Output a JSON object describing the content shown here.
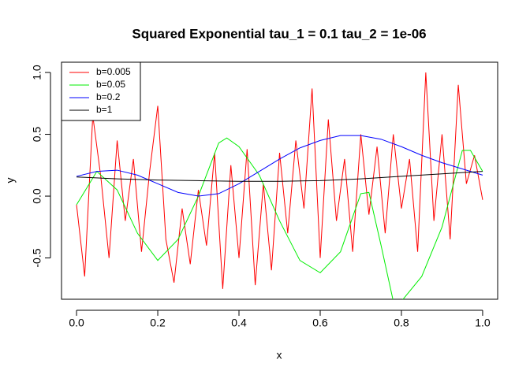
{
  "chart_data": {
    "type": "line",
    "title": "Squared Exponential  tau_1 = 0.1  tau_2 = 1e-06",
    "x_label": "x",
    "y_label": "y",
    "xlim": [
      -0.037,
      1.037
    ],
    "ylim": [
      -0.834,
      1.083
    ],
    "xticks": [
      {
        "value": 0,
        "label": "0.0"
      },
      0.2,
      0.4,
      0.6,
      0.8,
      {
        "value": 1,
        "label": "1.0"
      }
    ],
    "yticks": [
      -0.5,
      {
        "value": 0,
        "label": "0.0"
      },
      0.5,
      {
        "value": 1,
        "label": "1.0"
      }
    ],
    "legend": "top-left",
    "series": [
      {
        "name": "b=0.005",
        "color": "#ff0000",
        "x": [
          0,
          0.02,
          0.04,
          0.06,
          0.08,
          0.1,
          0.12,
          0.14,
          0.16,
          0.18,
          0.2,
          0.22,
          0.24,
          0.26,
          0.28,
          0.3,
          0.32,
          0.34,
          0.36,
          0.38,
          0.4,
          0.42,
          0.44,
          0.46,
          0.48,
          0.5,
          0.52,
          0.54,
          0.56,
          0.58,
          0.6,
          0.62,
          0.64,
          0.66,
          0.68,
          0.7,
          0.72,
          0.74,
          0.76,
          0.78,
          0.8,
          0.82,
          0.84,
          0.86,
          0.88,
          0.9,
          0.92,
          0.94,
          0.96,
          0.98,
          1
        ],
        "values": [
          -0.07,
          -0.65,
          0.65,
          0.15,
          -0.5,
          0.45,
          -0.2,
          0.3,
          -0.45,
          0.2,
          0.73,
          -0.35,
          -0.7,
          -0.1,
          -0.55,
          0.05,
          -0.4,
          0.35,
          -0.75,
          0.25,
          -0.5,
          0.38,
          -0.72,
          0.1,
          -0.6,
          0.35,
          -0.3,
          0.45,
          -0.1,
          0.87,
          -0.5,
          0.62,
          -0.2,
          0.3,
          -0.45,
          0.5,
          -0.15,
          0.4,
          -0.3,
          0.5,
          -0.1,
          0.3,
          -0.45,
          1.0,
          -0.2,
          0.5,
          -0.35,
          0.9,
          0.1,
          0.33,
          -0.03
        ]
      },
      {
        "name": "b=0.05",
        "color": "#00ee00",
        "x": [
          0,
          0.05,
          0.1,
          0.15,
          0.2,
          0.25,
          0.3,
          0.35,
          0.37,
          0.4,
          0.45,
          0.5,
          0.55,
          0.6,
          0.65,
          0.7,
          0.72,
          0.75,
          0.78,
          0.8,
          0.85,
          0.9,
          0.95,
          0.97,
          1
        ],
        "values": [
          -0.07,
          0.2,
          0.05,
          -0.3,
          -0.52,
          -0.35,
          0.0,
          0.43,
          0.47,
          0.4,
          0.17,
          -0.2,
          -0.52,
          -0.62,
          -0.45,
          0.02,
          0.03,
          -0.4,
          -0.85,
          -0.85,
          -0.65,
          -0.25,
          0.37,
          0.37,
          0.2
        ]
      },
      {
        "name": "b=0.2",
        "color": "#0000ff",
        "x": [
          0,
          0.05,
          0.1,
          0.15,
          0.2,
          0.25,
          0.3,
          0.35,
          0.4,
          0.45,
          0.5,
          0.55,
          0.6,
          0.65,
          0.7,
          0.75,
          0.8,
          0.85,
          0.9,
          0.95,
          1
        ],
        "values": [
          0.16,
          0.2,
          0.21,
          0.17,
          0.1,
          0.03,
          0.0,
          0.02,
          0.1,
          0.2,
          0.3,
          0.39,
          0.45,
          0.49,
          0.49,
          0.46,
          0.4,
          0.33,
          0.27,
          0.22,
          0.17
        ]
      },
      {
        "name": "b=1",
        "color": "#000000",
        "x": [
          0,
          0.1,
          0.2,
          0.3,
          0.4,
          0.5,
          0.6,
          0.7,
          0.8,
          0.9,
          1
        ],
        "values": [
          0.155,
          0.14,
          0.13,
          0.125,
          0.12,
          0.12,
          0.125,
          0.14,
          0.16,
          0.18,
          0.2
        ]
      }
    ]
  }
}
